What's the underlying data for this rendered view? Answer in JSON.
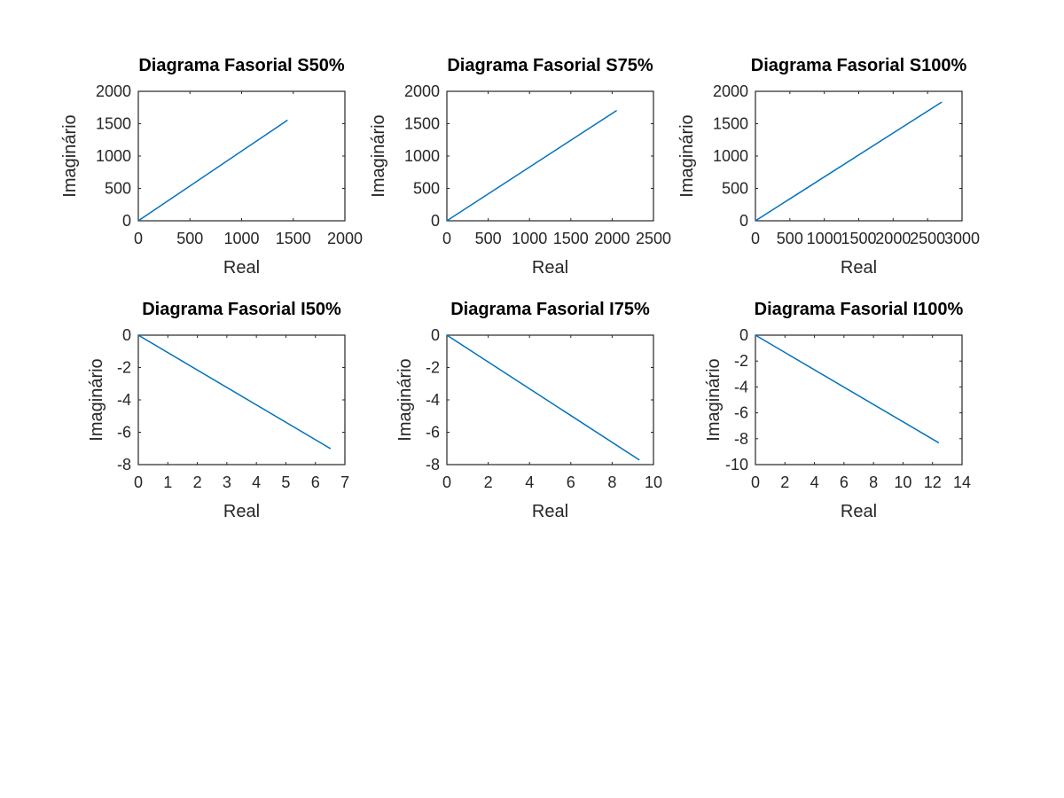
{
  "chart_data": [
    {
      "type": "line",
      "title": "Diagrama Fasorial S50%",
      "xlabel": "Real",
      "ylabel": "Imaginário",
      "xlim": [
        0,
        2000
      ],
      "ylim": [
        0,
        2000
      ],
      "xticks": [
        0,
        500,
        1000,
        1500,
        2000
      ],
      "yticks": [
        0,
        500,
        1000,
        1500,
        2000
      ],
      "xtick_labels": [
        "0",
        "500",
        "1000",
        "1500",
        "2000"
      ],
      "ytick_labels": [
        "0",
        "500",
        "1000",
        "1500",
        "2000"
      ],
      "grid": false,
      "series": [
        {
          "x": [
            0,
            1440
          ],
          "y": [
            0,
            1550
          ]
        }
      ]
    },
    {
      "type": "line",
      "title": "Diagrama Fasorial S75%",
      "xlabel": "Real",
      "ylabel": "Imaginário",
      "xlim": [
        0,
        2500
      ],
      "ylim": [
        0,
        2000
      ],
      "xticks": [
        0,
        500,
        1000,
        1500,
        2000,
        2500
      ],
      "yticks": [
        0,
        500,
        1000,
        1500,
        2000
      ],
      "xtick_labels": [
        "0",
        "500",
        "1000",
        "1500",
        "2000",
        "2500"
      ],
      "ytick_labels": [
        "0",
        "500",
        "1000",
        "1500",
        "2000"
      ],
      "grid": false,
      "series": [
        {
          "x": [
            0,
            2050
          ],
          "y": [
            0,
            1700
          ]
        }
      ]
    },
    {
      "type": "line",
      "title": "Diagrama Fasorial S100%",
      "xlabel": "Real",
      "ylabel": "Imaginário",
      "xlim": [
        0,
        3000
      ],
      "ylim": [
        0,
        2000
      ],
      "xticks": [
        0,
        500,
        1000,
        1500,
        2000,
        2500,
        3000
      ],
      "yticks": [
        0,
        500,
        1000,
        1500,
        2000
      ],
      "xtick_labels": [
        "0",
        "500",
        "1000",
        "1500",
        "2000",
        "2500",
        "3000"
      ],
      "ytick_labels": [
        "0",
        "500",
        "1000",
        "1500",
        "2000"
      ],
      "grid": false,
      "series": [
        {
          "x": [
            0,
            2700
          ],
          "y": [
            0,
            1830
          ]
        }
      ]
    },
    {
      "type": "line",
      "title": "Diagrama Fasorial I50%",
      "xlabel": "Real",
      "ylabel": "Imaginário",
      "xlim": [
        0,
        7
      ],
      "ylim": [
        -8,
        0
      ],
      "xticks": [
        0,
        1,
        2,
        3,
        4,
        5,
        6,
        7
      ],
      "yticks": [
        -8,
        -6,
        -4,
        -2,
        0
      ],
      "xtick_labels": [
        "0",
        "1",
        "2",
        "3",
        "4",
        "5",
        "6",
        "7"
      ],
      "ytick_labels": [
        "-8",
        "-6",
        "-4",
        "-2",
        "0"
      ],
      "grid": false,
      "series": [
        {
          "x": [
            0,
            6.5
          ],
          "y": [
            0,
            -7.0
          ]
        }
      ]
    },
    {
      "type": "line",
      "title": "Diagrama Fasorial I75%",
      "xlabel": "Real",
      "ylabel": "Imaginário",
      "xlim": [
        0,
        10
      ],
      "ylim": [
        -8,
        0
      ],
      "xticks": [
        0,
        2,
        4,
        6,
        8,
        10
      ],
      "yticks": [
        -8,
        -6,
        -4,
        -2,
        0
      ],
      "xtick_labels": [
        "0",
        "2",
        "4",
        "6",
        "8",
        "10"
      ],
      "ytick_labels": [
        "-8",
        "-6",
        "-4",
        "-2",
        "0"
      ],
      "grid": false,
      "series": [
        {
          "x": [
            0,
            9.3
          ],
          "y": [
            0,
            -7.7
          ]
        }
      ]
    },
    {
      "type": "line",
      "title": "Diagrama Fasorial I100%",
      "xlabel": "Real",
      "ylabel": "Imaginário",
      "xlim": [
        0,
        14
      ],
      "ylim": [
        -10,
        0
      ],
      "xticks": [
        0,
        2,
        4,
        6,
        8,
        10,
        12,
        14
      ],
      "yticks": [
        -10,
        -8,
        -6,
        -4,
        -2,
        0
      ],
      "xtick_labels": [
        "0",
        "2",
        "4",
        "6",
        "8",
        "10",
        "12",
        "14"
      ],
      "ytick_labels": [
        "-10",
        "-8",
        "-6",
        "-4",
        "-2",
        "0"
      ],
      "grid": false,
      "series": [
        {
          "x": [
            0,
            12.4
          ],
          "y": [
            0,
            -8.3
          ]
        }
      ]
    }
  ],
  "style": {
    "line_color": "#0072bd",
    "axis_color": "#262626",
    "background": "#ffffff"
  }
}
